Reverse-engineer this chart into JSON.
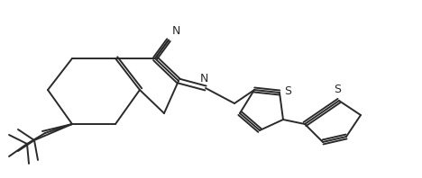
{
  "background_color": "#ffffff",
  "line_color": "#2a2a2a",
  "line_width": 1.4,
  "figsize": [
    4.68,
    1.98
  ],
  "dpi": 100,
  "xlim": [
    0,
    4.68
  ],
  "ylim": [
    0,
    1.98
  ]
}
